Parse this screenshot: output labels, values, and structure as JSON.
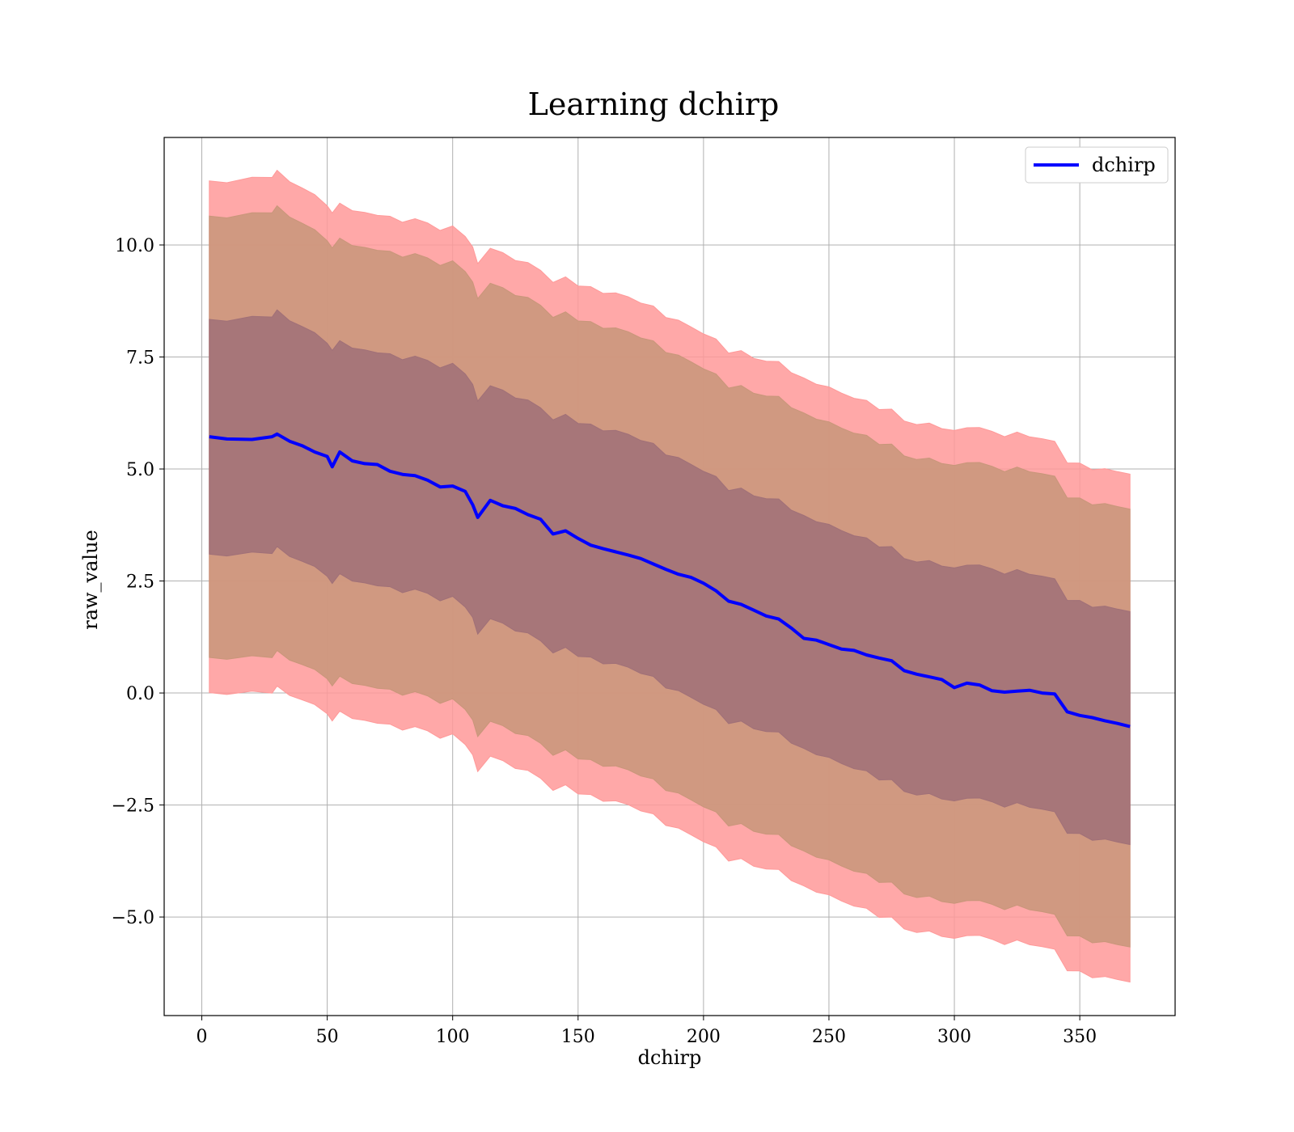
{
  "chart_data": {
    "type": "line",
    "title": "Learning dchirp",
    "xlabel": "dchirp",
    "ylabel": "raw_value",
    "xlim": [
      -15,
      388
    ],
    "ylim": [
      -7.2,
      12.4
    ],
    "xticks": [
      0,
      50,
      100,
      150,
      200,
      250,
      300,
      350
    ],
    "xtick_labels": [
      "0",
      "50",
      "100",
      "150",
      "200",
      "250",
      "300",
      "350"
    ],
    "yticks": [
      -5.0,
      -2.5,
      0.0,
      2.5,
      5.0,
      7.5,
      10.0
    ],
    "ytick_labels": [
      "−5.0",
      "−2.5",
      "0.0",
      "2.5",
      "5.0",
      "7.5",
      "10.0"
    ],
    "grid": true,
    "legend": {
      "location": "top-right",
      "entries": [
        "dchirp"
      ]
    },
    "colors": {
      "line": "#0000ff",
      "band_3sigma": "#ff9999",
      "band_2sigma": "#c8967a",
      "band_1sigma": "#a07078"
    },
    "series": [
      {
        "name": "dchirp",
        "x": [
          3,
          10,
          20,
          28,
          30,
          35,
          40,
          45,
          50,
          52,
          55,
          60,
          65,
          70,
          75,
          80,
          85,
          90,
          95,
          100,
          105,
          108,
          110,
          115,
          120,
          125,
          130,
          135,
          140,
          145,
          150,
          155,
          160,
          165,
          170,
          175,
          180,
          185,
          190,
          195,
          200,
          205,
          210,
          215,
          220,
          225,
          230,
          235,
          240,
          245,
          250,
          255,
          260,
          265,
          270,
          275,
          280,
          285,
          290,
          295,
          300,
          305,
          310,
          315,
          320,
          325,
          330,
          335,
          340,
          345,
          350,
          355,
          360,
          365,
          370
        ],
        "y": [
          5.72,
          5.67,
          5.66,
          5.72,
          5.78,
          5.62,
          5.52,
          5.38,
          5.28,
          5.05,
          5.38,
          5.18,
          5.12,
          5.1,
          4.95,
          4.88,
          4.85,
          4.75,
          4.6,
          4.62,
          4.5,
          4.2,
          3.92,
          4.3,
          4.18,
          4.12,
          3.98,
          3.88,
          3.55,
          3.62,
          3.45,
          3.3,
          3.22,
          3.15,
          3.08,
          3.0,
          2.88,
          2.76,
          2.65,
          2.58,
          2.45,
          2.28,
          2.05,
          1.98,
          1.85,
          1.72,
          1.65,
          1.45,
          1.22,
          1.18,
          1.08,
          0.98,
          0.95,
          0.85,
          0.78,
          0.72,
          0.5,
          0.42,
          0.36,
          0.3,
          0.12,
          0.22,
          0.18,
          0.05,
          0.02,
          0.04,
          0.06,
          0.0,
          -0.02,
          -0.42,
          -0.5,
          -0.55,
          -0.62,
          -0.68,
          -0.75
        ],
        "sigma": [
          2.62,
          2.62,
          2.63,
          2.64,
          2.64,
          2.63,
          2.62,
          2.61,
          2.6,
          2.6,
          2.6,
          2.6,
          2.6,
          2.6,
          2.6,
          2.6,
          2.6,
          2.6,
          2.6,
          2.6,
          2.6,
          2.6,
          2.6,
          2.6,
          2.6,
          2.6,
          2.6,
          2.6,
          2.6,
          2.6,
          2.6,
          2.6,
          2.6,
          2.6,
          2.6,
          2.6,
          2.6,
          2.6,
          2.6,
          2.6,
          2.6,
          2.6,
          2.6,
          2.6,
          2.6,
          2.6,
          2.6,
          2.6,
          2.6,
          2.6,
          2.6,
          2.6,
          2.6,
          2.6,
          2.6,
          2.6,
          2.6,
          2.6,
          2.6,
          2.6,
          2.6,
          2.6,
          2.6,
          2.6,
          2.6,
          2.6,
          2.6,
          2.6,
          2.6,
          2.6,
          2.6,
          2.6,
          2.6,
          2.6,
          2.6
        ]
      }
    ]
  }
}
